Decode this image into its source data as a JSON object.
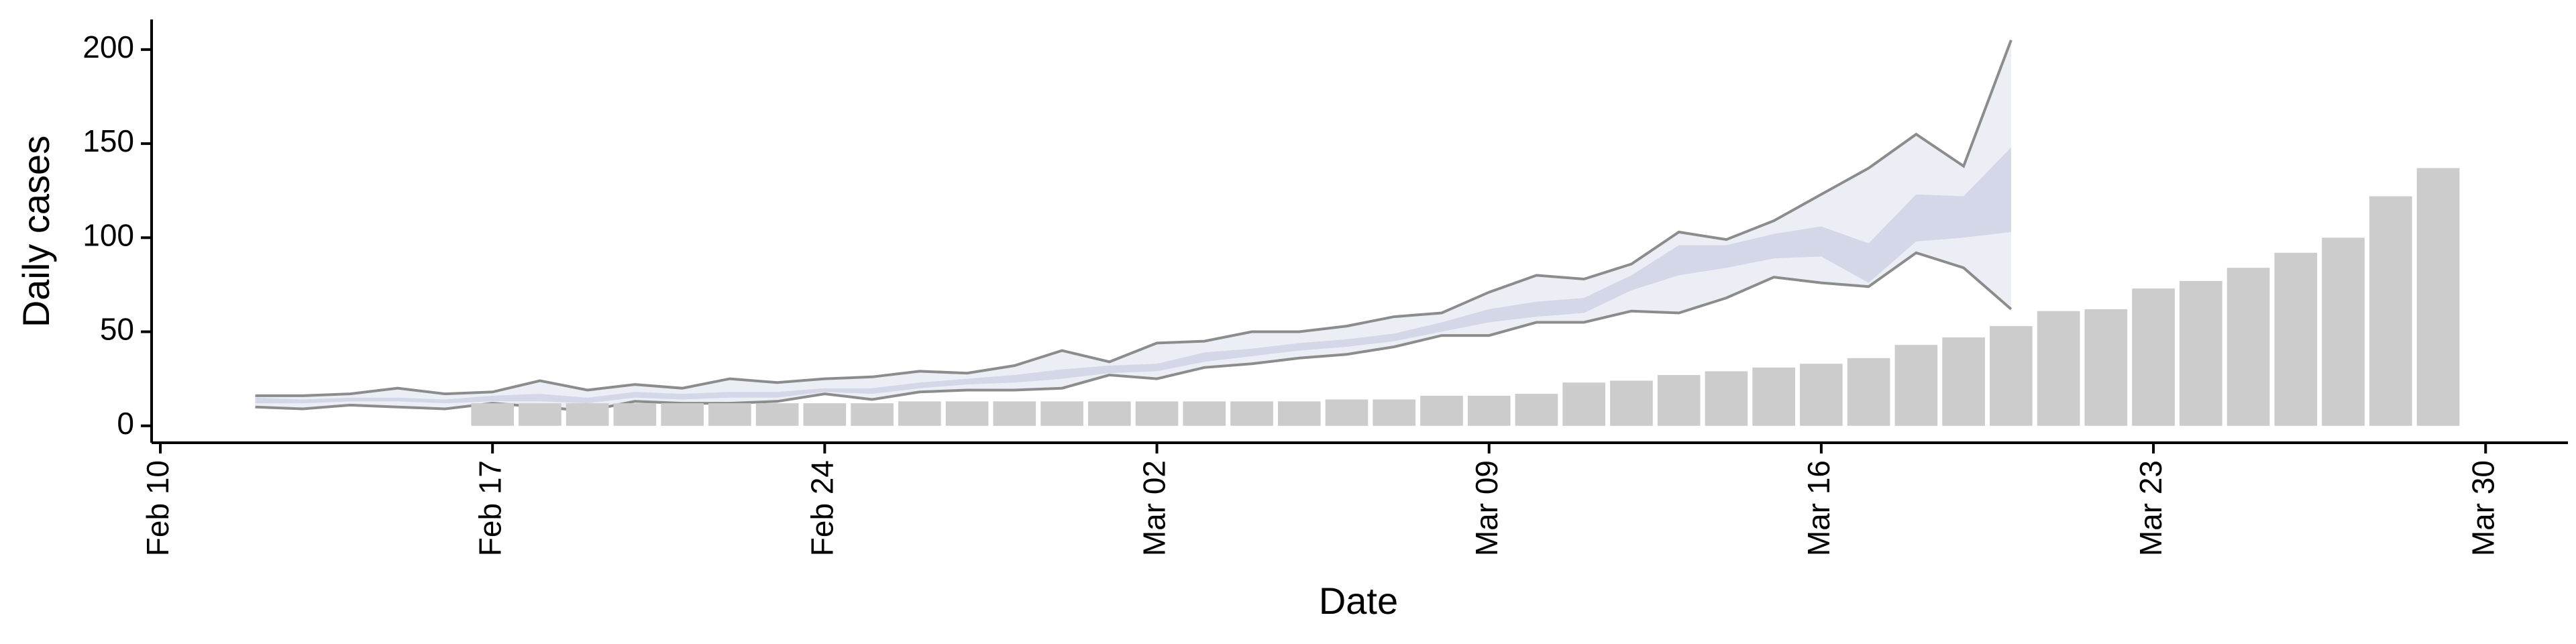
{
  "chart_data": {
    "type": "bar-band",
    "x_title": "Date",
    "y_title": "Daily cases",
    "xlim": [
      "Feb 10",
      "Mar 31"
    ],
    "xticks": [
      "Feb 10",
      "Feb 17",
      "Feb 24",
      "Mar 02",
      "Mar 09",
      "Mar 16",
      "Mar 23",
      "Mar 30"
    ],
    "ylim": [
      -9,
      216
    ],
    "yticks": [
      0,
      50,
      100,
      150,
      200
    ],
    "bars": {
      "color": "#cccccc",
      "x": [
        "Feb 17",
        "Feb 18",
        "Feb 19",
        "Feb 20",
        "Feb 21",
        "Feb 22",
        "Feb 23",
        "Feb 24",
        "Feb 25",
        "Feb 26",
        "Feb 27",
        "Feb 28",
        "Feb 29",
        "Mar 1",
        "Mar 2",
        "Mar 3",
        "Mar 4",
        "Mar 5",
        "Mar 6",
        "Mar 7",
        "Mar 8",
        "Mar 9",
        "Mar 10",
        "Mar 11",
        "Mar 12",
        "Mar 13",
        "Mar 14",
        "Mar 15",
        "Mar 16",
        "Mar 17",
        "Mar 18",
        "Mar 19",
        "Mar 20",
        "Mar 21",
        "Mar 22",
        "Mar 23",
        "Mar 24",
        "Mar 25",
        "Mar 26",
        "Mar 27",
        "Mar 28",
        "Mar 29"
      ],
      "values": [
        12,
        12,
        12,
        12,
        12,
        12,
        12,
        12,
        12,
        13,
        13,
        13,
        13,
        13,
        13,
        13,
        13,
        13,
        14,
        14,
        16,
        16,
        17,
        23,
        24,
        27,
        29,
        31,
        33,
        36,
        43,
        47,
        53,
        61,
        62,
        73,
        77,
        84,
        92,
        100,
        122,
        137
      ]
    },
    "x": [
      "Feb 12",
      "Feb 13",
      "Feb 14",
      "Feb 15",
      "Feb 16",
      "Feb 17",
      "Feb 18",
      "Feb 19",
      "Feb 20",
      "Feb 21",
      "Feb 22",
      "Feb 23",
      "Feb 24",
      "Feb 25",
      "Feb 26",
      "Feb 27",
      "Feb 28",
      "Feb 29",
      "Mar 1",
      "Mar 2",
      "Mar 3",
      "Mar 4",
      "Mar 5",
      "Mar 6",
      "Mar 7",
      "Mar 8",
      "Mar 9",
      "Mar 10",
      "Mar 11",
      "Mar 12",
      "Mar 13",
      "Mar 14",
      "Mar 15",
      "Mar 16",
      "Mar 17",
      "Mar 18",
      "Mar 19",
      "Mar 20"
    ],
    "bands": [
      {
        "color": "#eceef5",
        "line_color": "#8c8c8c",
        "lower": [
          10,
          9,
          11,
          10,
          9,
          12,
          10,
          8,
          13,
          12,
          12,
          13,
          17,
          14,
          18,
          19,
          19,
          20,
          27,
          25,
          31,
          33,
          36,
          38,
          42,
          48,
          48,
          55,
          55,
          61,
          60,
          68,
          79,
          76,
          74,
          92,
          84,
          62
        ],
        "upper": [
          16,
          16,
          17,
          20,
          17,
          18,
          24,
          19,
          22,
          20,
          25,
          23,
          25,
          26,
          29,
          28,
          32,
          40,
          34,
          44,
          45,
          50,
          50,
          53,
          58,
          60,
          71,
          80,
          78,
          86,
          103,
          99,
          109,
          123,
          137,
          155,
          138,
          205
        ]
      },
      {
        "color": "#d3d7e8",
        "lower": [
          12,
          12,
          13,
          13,
          12,
          13,
          13,
          12,
          15,
          14,
          15,
          15,
          18,
          17,
          20,
          22,
          23,
          25,
          28,
          29,
          34,
          37,
          40,
          42,
          45,
          50,
          55,
          58,
          60,
          72,
          80,
          84,
          89,
          90,
          76,
          98,
          100,
          103
        ],
        "upper": [
          15,
          14,
          15,
          15,
          14,
          16,
          17,
          15,
          18,
          17,
          18,
          18,
          20,
          20,
          23,
          25,
          27,
          30,
          32,
          33,
          39,
          41,
          44,
          46,
          49,
          55,
          62,
          66,
          68,
          80,
          96,
          96,
          102,
          106,
          97,
          123,
          122,
          148
        ]
      }
    ]
  }
}
